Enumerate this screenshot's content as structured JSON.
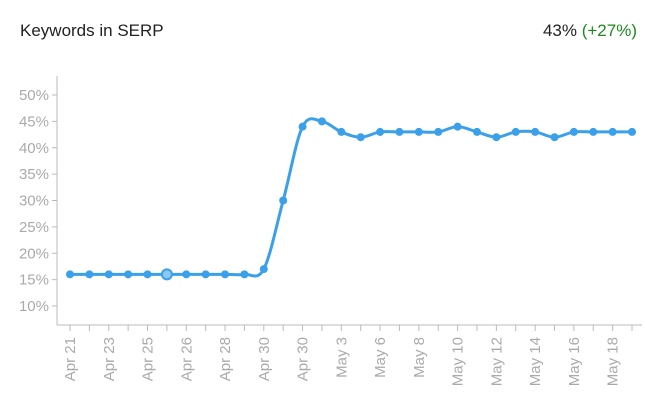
{
  "header": {
    "title": "Keywords in SERP",
    "current_value": "43%",
    "change": "(+27%)",
    "change_color": "#1e8a1e"
  },
  "chart_data": {
    "type": "line",
    "title": "Keywords in SERP",
    "xlabel": "",
    "ylabel": "",
    "ylim": [
      7,
      52
    ],
    "yticks": [
      "10%",
      "15%",
      "20%",
      "25%",
      "30%",
      "35%",
      "40%",
      "45%",
      "50%"
    ],
    "ytick_values": [
      10,
      15,
      20,
      25,
      30,
      35,
      40,
      45,
      50
    ],
    "x_labels": [
      "Apr 21",
      "",
      "Apr 23",
      "",
      "Apr 25",
      "",
      "Apr 26",
      "",
      "Apr 28",
      "",
      "Apr 30",
      "",
      "Apr 30",
      "",
      "May 3",
      "",
      "May 6",
      "",
      "May 8",
      "",
      "May 10",
      "",
      "May 12",
      "",
      "May 14",
      "",
      "May 16",
      "",
      "May 18",
      ""
    ],
    "values": [
      16,
      16,
      16,
      16,
      16,
      16,
      16,
      16,
      16,
      16,
      17,
      30,
      44,
      45,
      43,
      42,
      43,
      43,
      43,
      43,
      44,
      43,
      42,
      43,
      43,
      42,
      43,
      43,
      43,
      43
    ],
    "highlighted_index": 5,
    "grid": false,
    "line_color": "#3aa0ea",
    "smooth": true
  }
}
